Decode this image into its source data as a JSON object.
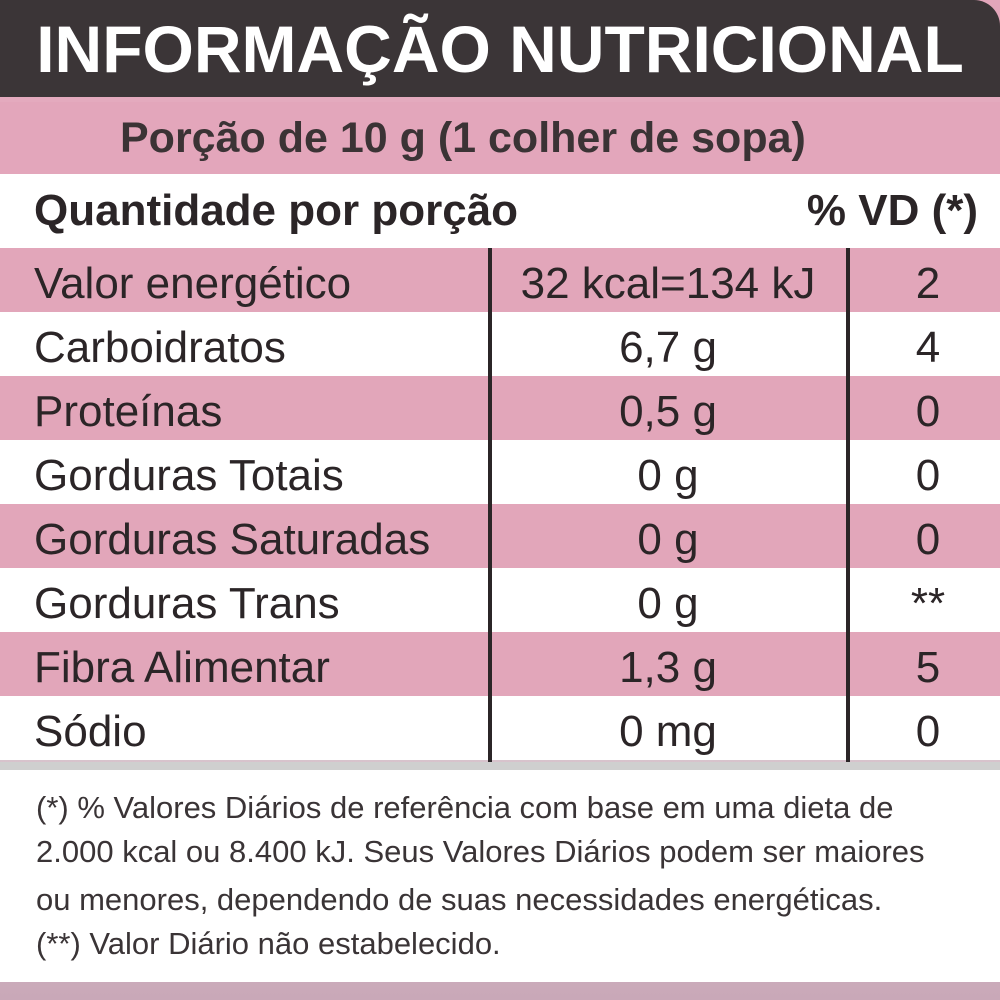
{
  "header": {
    "title": "INFORMAÇÃO NUTRICIONAL"
  },
  "portion": {
    "text": "Porção de 10 g (1 colher de sopa)"
  },
  "columns": {
    "quantity_label": "Quantidade por porção",
    "vd_label": "% VD (*)"
  },
  "rows": [
    {
      "name": "Valor energético",
      "amount": "32 kcal=134 kJ",
      "vd": "2"
    },
    {
      "name": "Carboidratos",
      "amount": "6,7 g",
      "vd": "4"
    },
    {
      "name": "Proteínas",
      "amount": "0,5 g",
      "vd": "0"
    },
    {
      "name": "Gorduras Totais",
      "amount": "0 g",
      "vd": "0"
    },
    {
      "name": "Gorduras Saturadas",
      "amount": "0 g",
      "vd": "0"
    },
    {
      "name": "Gorduras Trans",
      "amount": "0 g",
      "vd": "**"
    },
    {
      "name": "Fibra Alimentar",
      "amount": "1,3 g",
      "vd": "5"
    },
    {
      "name": "Sódio",
      "amount": "0 mg",
      "vd": "0"
    }
  ],
  "footnote": {
    "lines": [
      "(*) % Valores Diários de referência com base em uma dieta de",
      "2.000 kcal ou 8.400 kJ. Seus Valores Diários podem ser maiores",
      "ou menores, dependendo de suas necessidades energéticas.",
      "(**) Valor Diário não estabelecido."
    ]
  },
  "colors": {
    "header_bg": "#3b3537",
    "pink_row": "#e2a6ba",
    "white_row": "#ffffff",
    "text": "#2b2527"
  }
}
